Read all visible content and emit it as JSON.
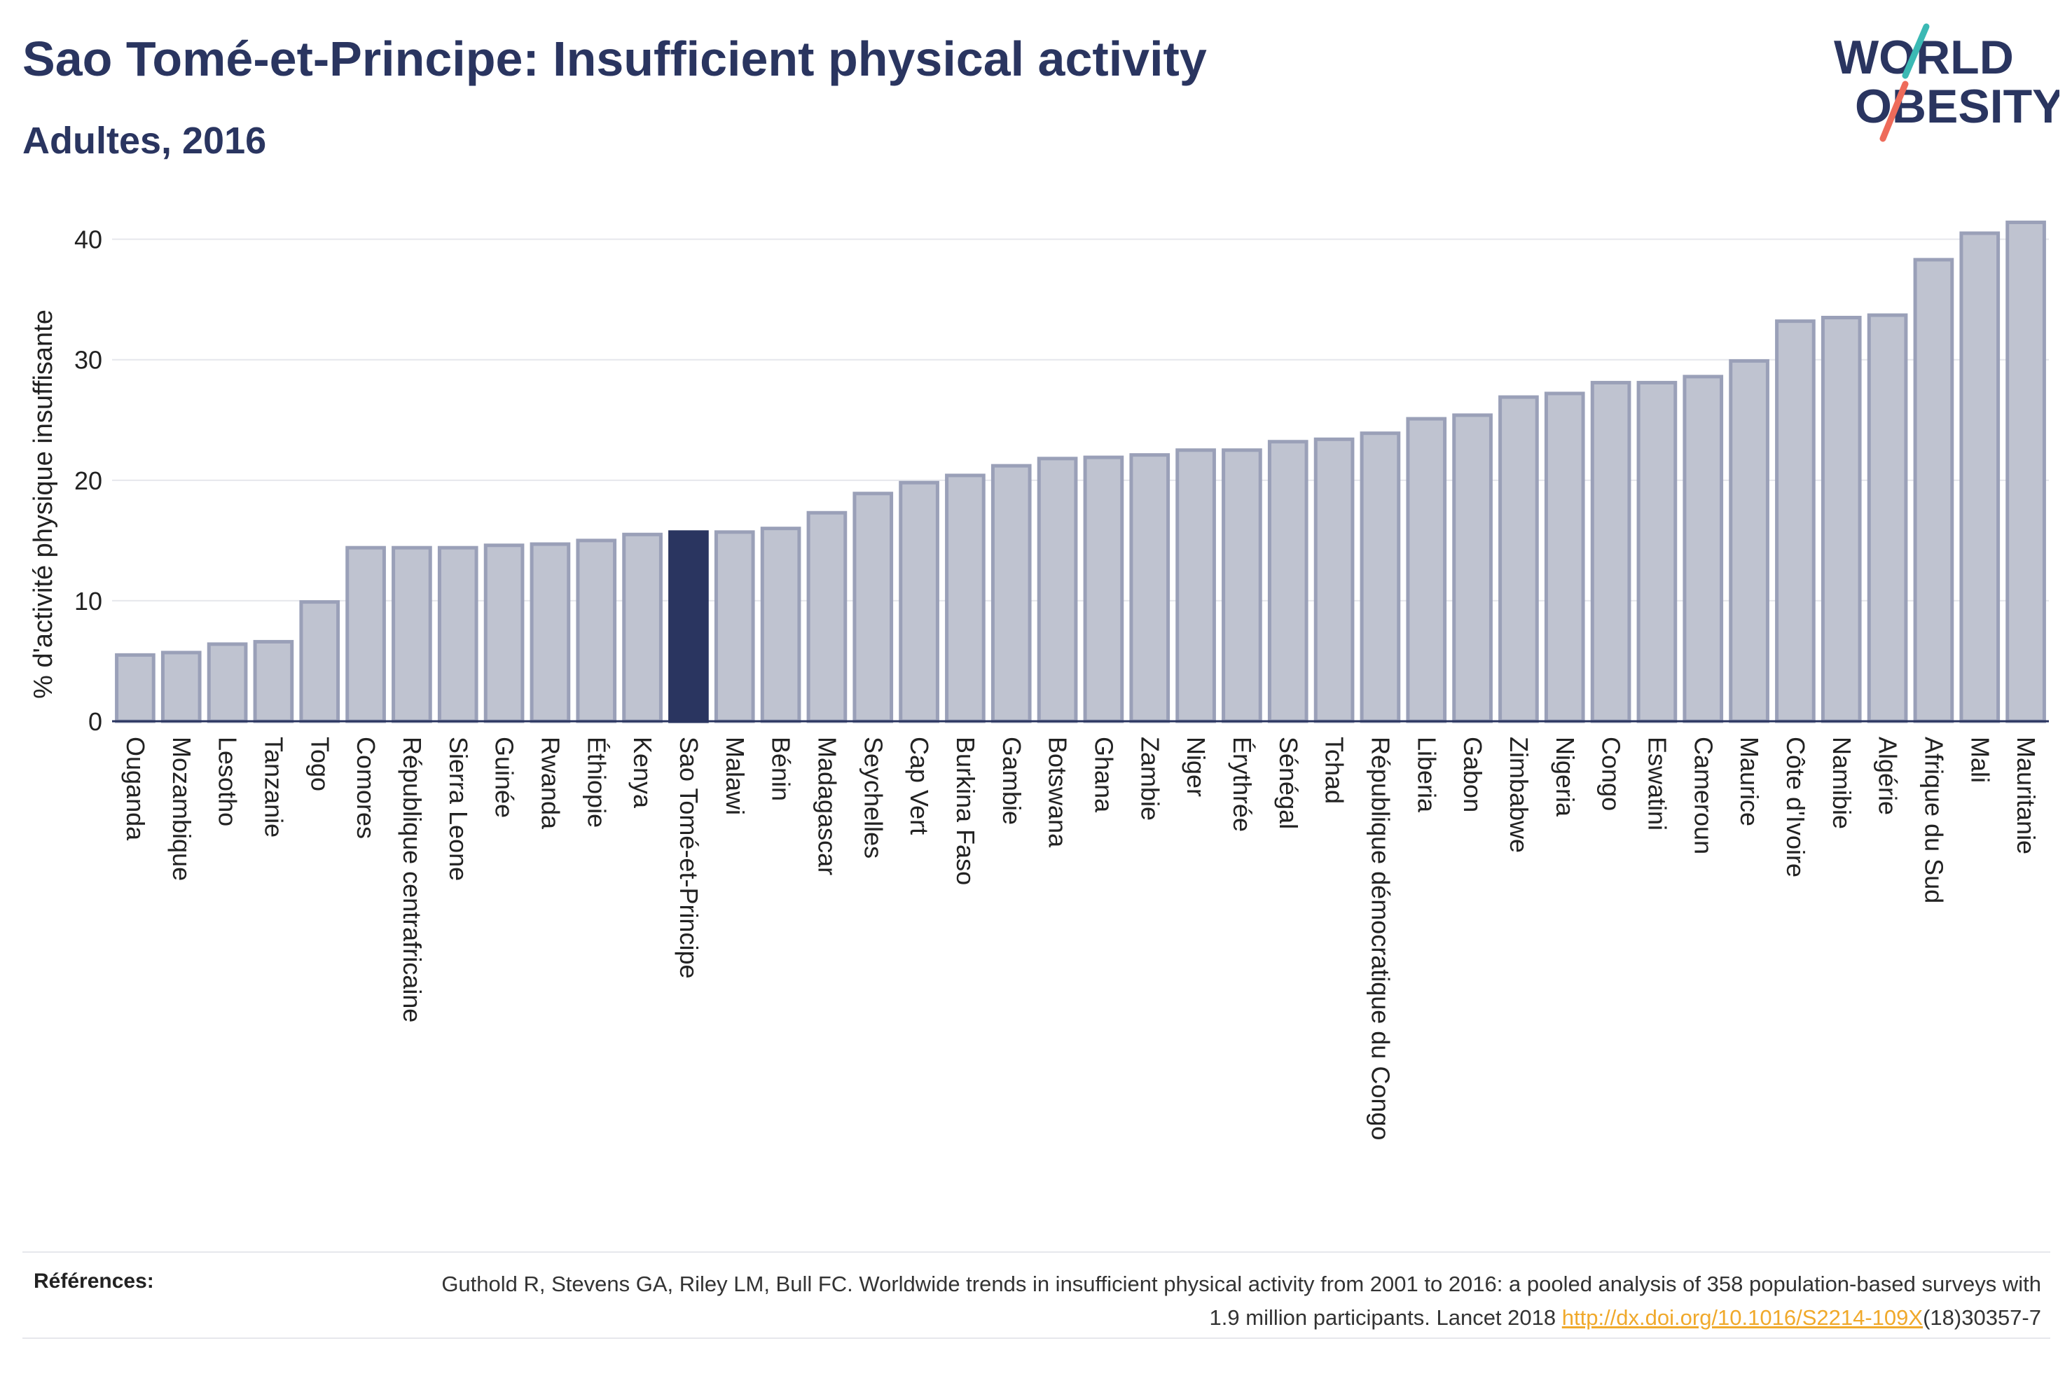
{
  "header": {
    "title": "Sao Tomé-et-Principe: Insufficient physical activity",
    "subtitle": "Adultes, 2016"
  },
  "logo": {
    "line1": "WORLD",
    "line2": "OBESITY",
    "colors": {
      "text": "#2a3560",
      "slash_top": "#3bb9b4",
      "slash_bottom": "#ee6b5a"
    }
  },
  "references": {
    "label": "Références:",
    "text_before_link": "Guthold R, Stevens GA, Riley LM, Bull FC. Worldwide trends in insufficient physical activity from 2001 to 2016: a pooled analysis of 358 population-based surveys with 1.9 million participants. Lancet 2018 ",
    "link": "http://dx.doi.org/10.1016/S2214-109X",
    "text_after_link": "(18)30357-7"
  },
  "chart_data": {
    "type": "bar",
    "title": "Sao Tomé-et-Principe: Insufficient physical activity",
    "subtitle": "Adultes, 2016",
    "xlabel": "",
    "ylabel": "% d'activité physique insuffisante",
    "ylim": [
      0,
      43
    ],
    "yticks": [
      0,
      10,
      20,
      30,
      40
    ],
    "grid": true,
    "highlight": "Sao Tomé-et-Principe",
    "colors": {
      "bar": "#bfc3d0",
      "bar_edge": "#9aa0b8",
      "highlight": "#2a3560",
      "grid": "#e6e7ec",
      "axis": "#2a3560"
    },
    "categories": [
      "Ouganda",
      "Mozambique",
      "Lesotho",
      "Tanzanie",
      "Togo",
      "Comores",
      "République centrafricaine",
      "Sierra Leone",
      "Guinée",
      "Rwanda",
      "Éthiopie",
      "Kenya",
      "Sao Tomé-et-Principe",
      "Malawi",
      "Bénin",
      "Madagascar",
      "Seychelles",
      "Cap Vert",
      "Burkina Faso",
      "Gambie",
      "Botswana",
      "Ghana",
      "Zambie",
      "Niger",
      "Érythrée",
      "Sénégal",
      "Tchad",
      "République démocratique du Congo",
      "Liberia",
      "Gabon",
      "Zimbabwe",
      "Nigeria",
      "Congo",
      "Eswatini",
      "Cameroun",
      "Maurice",
      "Côte d'Ivoire",
      "Namibie",
      "Algérie",
      "Afrique du Sud",
      "Mali",
      "Mauritanie"
    ],
    "values": [
      5.5,
      5.7,
      6.4,
      6.6,
      9.9,
      14.4,
      14.4,
      14.4,
      14.6,
      14.7,
      15.0,
      15.5,
      15.7,
      15.7,
      16.0,
      17.3,
      18.9,
      19.8,
      20.4,
      21.2,
      21.8,
      21.9,
      22.1,
      22.5,
      22.5,
      23.2,
      23.4,
      23.9,
      25.1,
      25.4,
      26.9,
      27.2,
      28.1,
      28.1,
      28.6,
      29.9,
      33.2,
      33.5,
      33.7,
      38.3,
      40.5,
      41.4
    ]
  }
}
